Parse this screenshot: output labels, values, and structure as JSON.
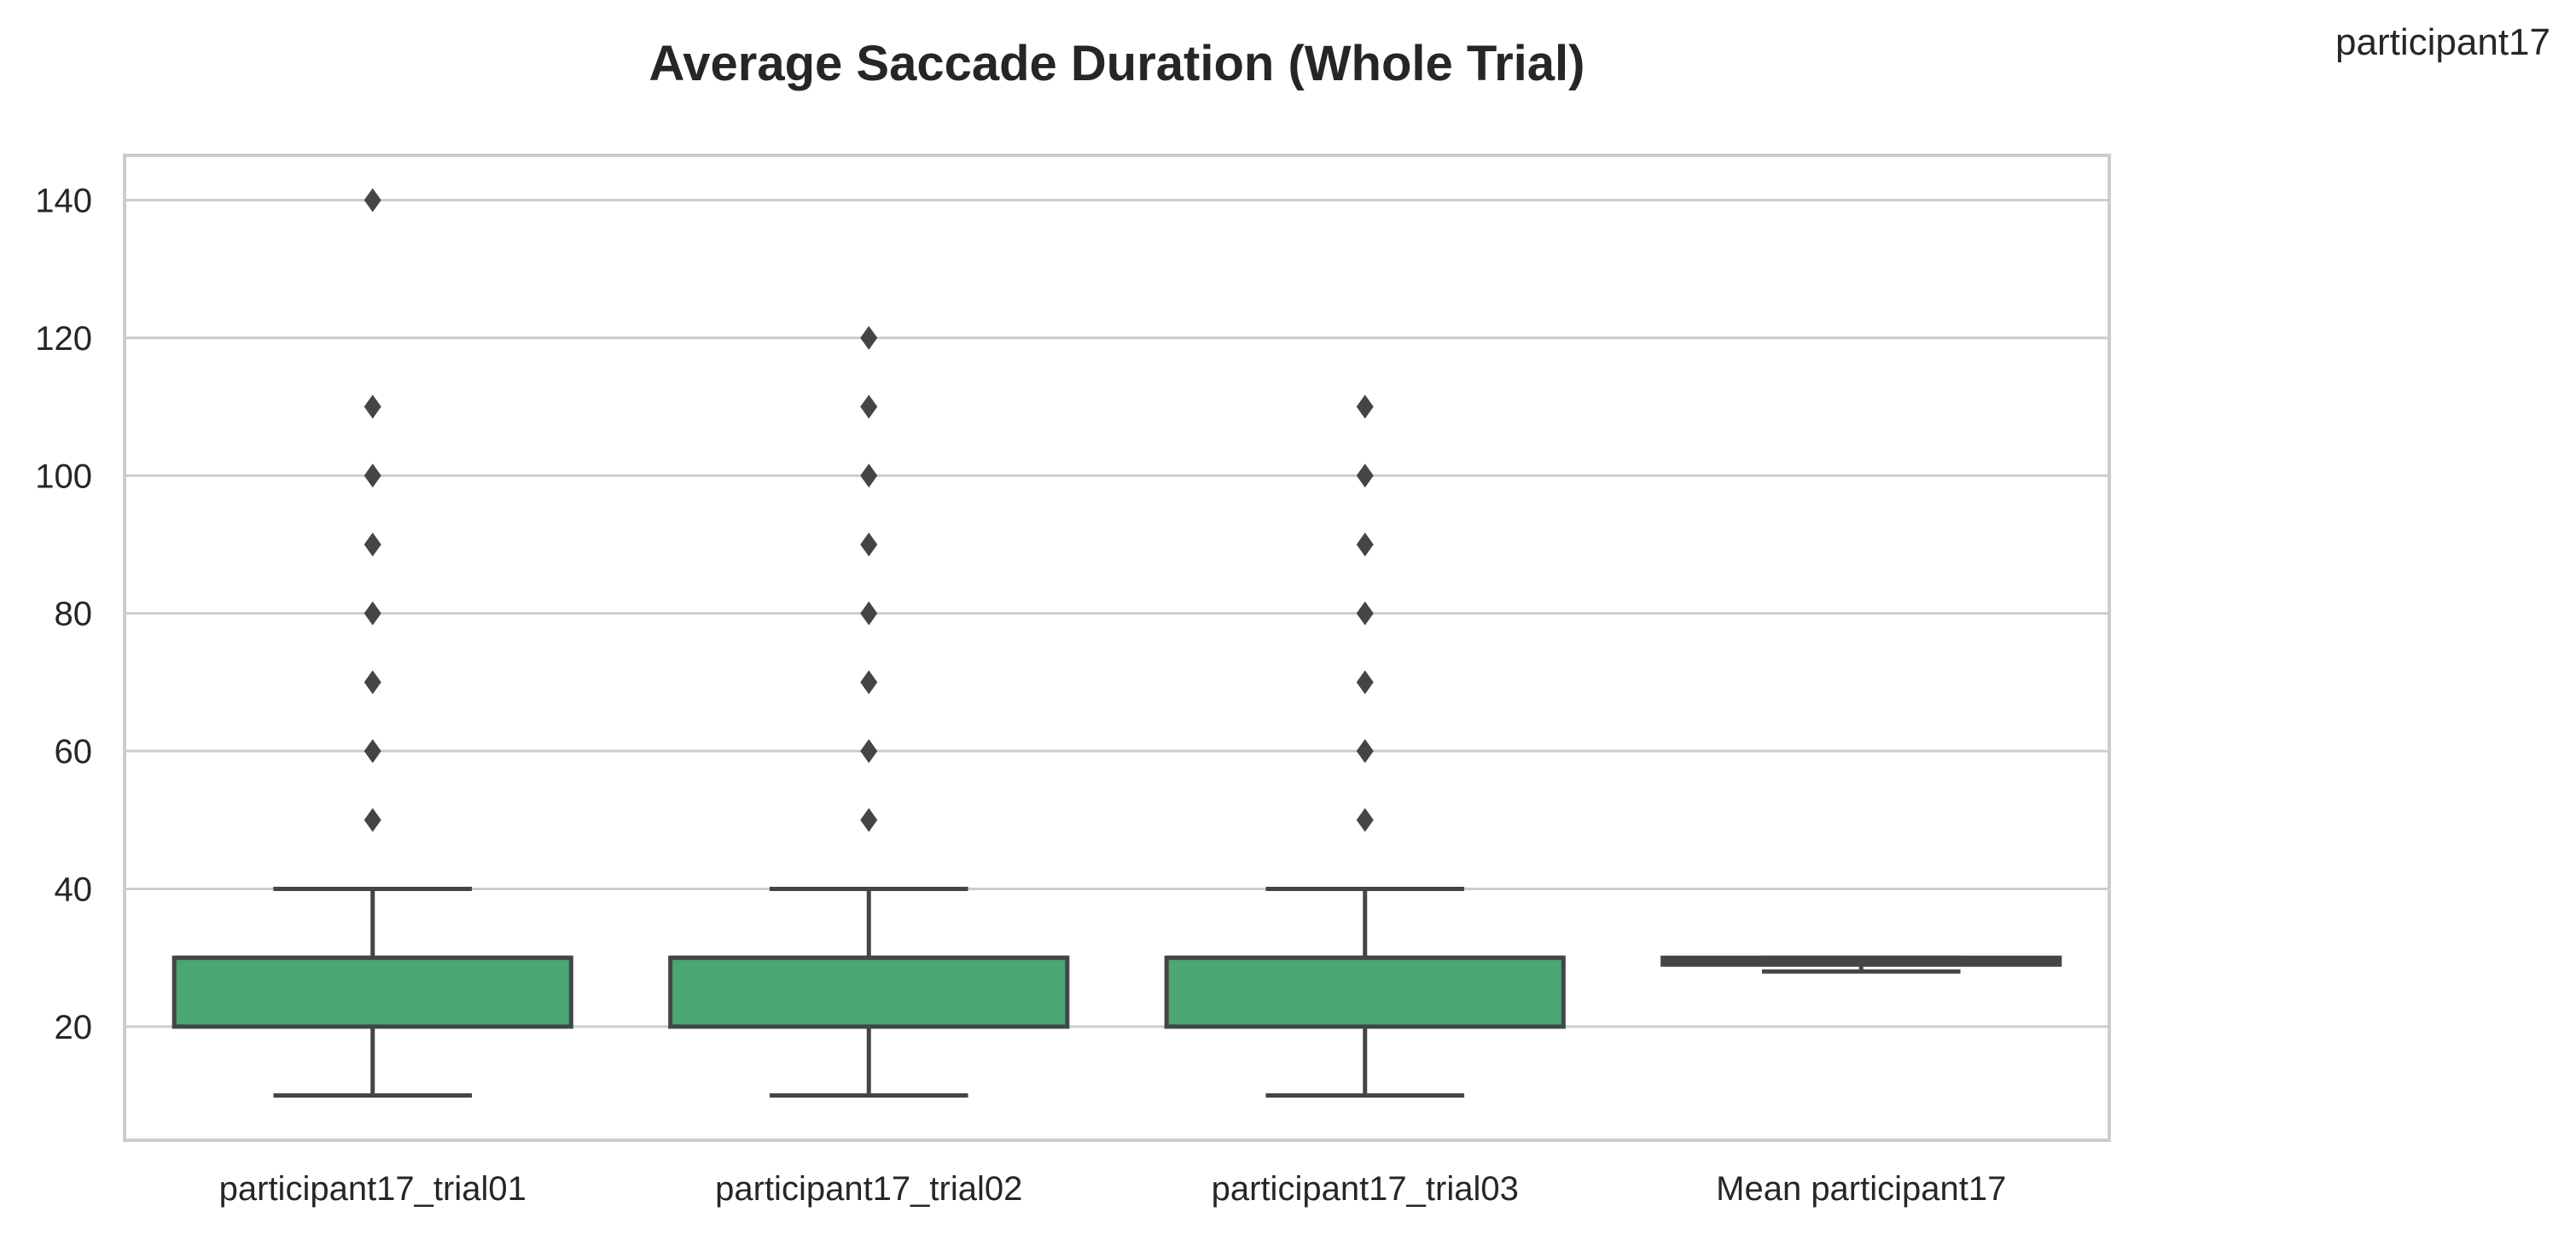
{
  "chart_data": {
    "type": "box",
    "title": "Average Saccade Duration (Whole Trial)",
    "corner_label": "participant17",
    "xlabel": "",
    "ylabel": "",
    "ylim": [
      3.5,
      146.5
    ],
    "yticks": [
      20,
      40,
      60,
      80,
      100,
      120,
      140
    ],
    "grid": true,
    "box_color": "#4aa673",
    "line_color": "#454545",
    "categories": [
      "participant17_trial01",
      "participant17_trial02",
      "participant17_trial03",
      "Mean participant17"
    ],
    "boxes": [
      {
        "whisker_low": 10,
        "q1": 20,
        "median": 30,
        "q3": 30,
        "whisker_high": 40,
        "outliers": [
          50,
          60,
          70,
          80,
          90,
          100,
          110,
          140
        ]
      },
      {
        "whisker_low": 10,
        "q1": 20,
        "median": 30,
        "q3": 30,
        "whisker_high": 40,
        "outliers": [
          50,
          60,
          70,
          80,
          90,
          100,
          110,
          120
        ]
      },
      {
        "whisker_low": 10,
        "q1": 20,
        "median": 30,
        "q3": 30,
        "whisker_high": 40,
        "outliers": [
          50,
          60,
          70,
          80,
          90,
          100,
          110
        ]
      },
      {
        "whisker_low": 28,
        "q1": 29,
        "median": 29.5,
        "q3": 30,
        "whisker_high": 30,
        "outliers": []
      }
    ]
  }
}
